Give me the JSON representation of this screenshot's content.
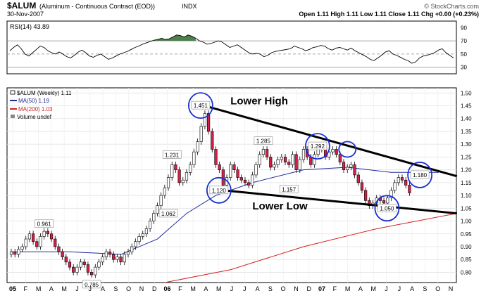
{
  "header": {
    "symbol": "$ALUM",
    "description": "(Aluminum - Continuous Contract (EOD))",
    "exchange": "INDX",
    "date": "30-Nov-2007",
    "copyright": "© StockCharts.com",
    "quote": "Open 1.11  High 1.11  Low 1.11  Close 1.11  Chg +0.00 (+0.23%)"
  },
  "colors": {
    "price_up": "#ffffff",
    "price_down": "#d6204b",
    "ma50": "#1f2a9a",
    "ma200": "#d42020",
    "annotation_circle": "#1a2fd0",
    "trendline": "#000000",
    "rsi_fill": "#4f7f4f"
  },
  "chart_data": [
    {
      "type": "line",
      "title": "RSI(14) 43.89",
      "series_name": "RSI(14)",
      "last_value": 43.89,
      "y_ticks": [
        90,
        70,
        50,
        30
      ],
      "ylim": [
        20,
        100
      ],
      "reference_lines": [
        70,
        50,
        30
      ],
      "values": [
        55,
        60,
        64,
        58,
        50,
        47,
        52,
        57,
        62,
        60,
        55,
        52,
        50,
        53,
        50,
        46,
        44,
        48,
        53,
        56,
        52,
        47,
        45,
        48,
        50,
        46,
        42,
        44,
        47,
        50,
        52,
        54,
        57,
        60,
        62,
        65,
        67,
        69,
        71,
        72,
        74,
        72,
        73,
        76,
        79,
        78,
        76,
        79,
        77,
        74,
        70,
        68,
        65,
        66,
        68,
        70,
        68,
        64,
        60,
        62,
        64,
        60,
        56,
        52,
        50,
        51,
        50,
        46,
        48,
        52,
        54,
        55,
        56,
        57,
        58,
        62,
        60,
        58,
        55,
        57,
        60,
        61,
        63,
        62,
        58,
        56,
        59,
        60,
        58,
        56,
        59,
        55,
        52,
        49,
        46,
        42,
        40,
        44,
        48,
        53,
        55,
        50,
        48,
        45,
        42,
        40,
        36,
        38,
        44,
        47,
        48,
        50,
        52,
        56,
        58,
        52,
        48,
        44
      ]
    },
    {
      "type": "candlestick",
      "title": "$ALUM (Weekly) 1.11",
      "legend": [
        "$ALUM (Weekly) 1.11",
        "MA(50) 1.19",
        "MA(200) 1.03",
        "Volume undef"
      ],
      "x_ticks": [
        "05",
        "F",
        "M",
        "A",
        "M",
        "J",
        "J",
        "A",
        "S",
        "O",
        "N",
        "D",
        "06",
        "F",
        "M",
        "A",
        "M",
        "J",
        "J",
        "A",
        "S",
        "O",
        "N",
        "D",
        "07",
        "F",
        "M",
        "A",
        "M",
        "J",
        "J",
        "A",
        "S",
        "O",
        "N"
      ],
      "y_ticks": [
        "1.50",
        "1.45",
        "1.40",
        "1.35",
        "1.30",
        "1.25",
        "1.20",
        "1.15",
        "1.10",
        "1.05",
        "1.00",
        "0.95",
        "0.90",
        "0.85",
        "0.80"
      ],
      "ylim": [
        0.76,
        1.52
      ],
      "grid": true,
      "close": [
        0.88,
        0.87,
        0.89,
        0.9,
        0.93,
        0.95,
        0.92,
        0.9,
        0.94,
        0.96,
        0.95,
        0.93,
        0.9,
        0.88,
        0.86,
        0.84,
        0.82,
        0.8,
        0.82,
        0.84,
        0.83,
        0.8,
        0.79,
        0.82,
        0.84,
        0.86,
        0.88,
        0.87,
        0.85,
        0.86,
        0.84,
        0.87,
        0.88,
        0.9,
        0.92,
        0.94,
        0.95,
        0.97,
        1.0,
        1.03,
        1.06,
        1.1,
        1.13,
        1.17,
        1.22,
        1.2,
        1.15,
        1.16,
        1.19,
        1.22,
        1.27,
        1.31,
        1.37,
        1.42,
        1.35,
        1.28,
        1.22,
        1.2,
        1.14,
        1.17,
        1.22,
        1.2,
        1.17,
        1.16,
        1.15,
        1.14,
        1.18,
        1.22,
        1.26,
        1.28,
        1.25,
        1.21,
        1.22,
        1.24,
        1.25,
        1.23,
        1.22,
        1.26,
        1.2,
        1.24,
        1.28,
        1.25,
        1.22,
        1.26,
        1.28,
        1.29,
        1.25,
        1.27,
        1.28,
        1.26,
        1.23,
        1.2,
        1.21,
        1.22,
        1.18,
        1.15,
        1.12,
        1.08,
        1.06,
        1.07,
        1.09,
        1.08,
        1.07,
        1.09,
        1.12,
        1.15,
        1.17,
        1.16,
        1.14,
        1.11
      ],
      "annotations": [
        {
          "label": "0.961",
          "index": 9,
          "price": 0.961,
          "position": "above"
        },
        {
          "label": "0.785",
          "index": 22,
          "price": 0.785,
          "position": "below"
        },
        {
          "label": "1.231",
          "index": 44,
          "price": 1.231,
          "position": "above"
        },
        {
          "label": "1.062",
          "index": 43,
          "price": 1.062,
          "position": "below"
        },
        {
          "label": "1.451",
          "index": 53,
          "price": 1.451,
          "circled": true
        },
        {
          "label": "1.120",
          "index": 58,
          "price": 1.12,
          "circled": true
        },
        {
          "label": "1.285",
          "index": 69,
          "price": 1.285,
          "position": "above"
        },
        {
          "label": "1.157",
          "index": 76,
          "price": 1.157,
          "position": "below"
        },
        {
          "label": "1.292",
          "index": 85,
          "price": 1.292,
          "circled": true
        },
        {
          "label": "1.050",
          "index": 104,
          "price": 1.05,
          "circled": true
        },
        {
          "label": "1.180",
          "index": 113,
          "price": 1.18,
          "circled": true
        }
      ],
      "extra_circles": [
        {
          "index": 92,
          "price": 1.28
        }
      ],
      "trendlines": [
        {
          "label": "Lower High",
          "from": {
            "index": 53,
            "price": 1.45
          },
          "to": {
            "index": 122,
            "price": 1.175
          }
        },
        {
          "label": "Lower Low",
          "from": {
            "index": 58,
            "price": 1.12
          },
          "to": {
            "index": 122,
            "price": 1.03
          }
        }
      ],
      "ma50": {
        "name": "MA(50)",
        "value": 1.19,
        "path": [
          [
            0,
            0.88
          ],
          [
            16,
            0.88
          ],
          [
            30,
            0.87
          ],
          [
            40,
            0.93
          ],
          [
            48,
            1.03
          ],
          [
            56,
            1.1
          ],
          [
            66,
            1.15
          ],
          [
            80,
            1.2
          ],
          [
            92,
            1.21
          ],
          [
            104,
            1.19
          ],
          [
            117,
            1.19
          ]
        ]
      },
      "ma200": {
        "name": "MA(200)",
        "value": 1.03,
        "path": [
          [
            42,
            0.76
          ],
          [
            60,
            0.81
          ],
          [
            80,
            0.9
          ],
          [
            100,
            0.97
          ],
          [
            122,
            1.03
          ]
        ]
      }
    }
  ]
}
